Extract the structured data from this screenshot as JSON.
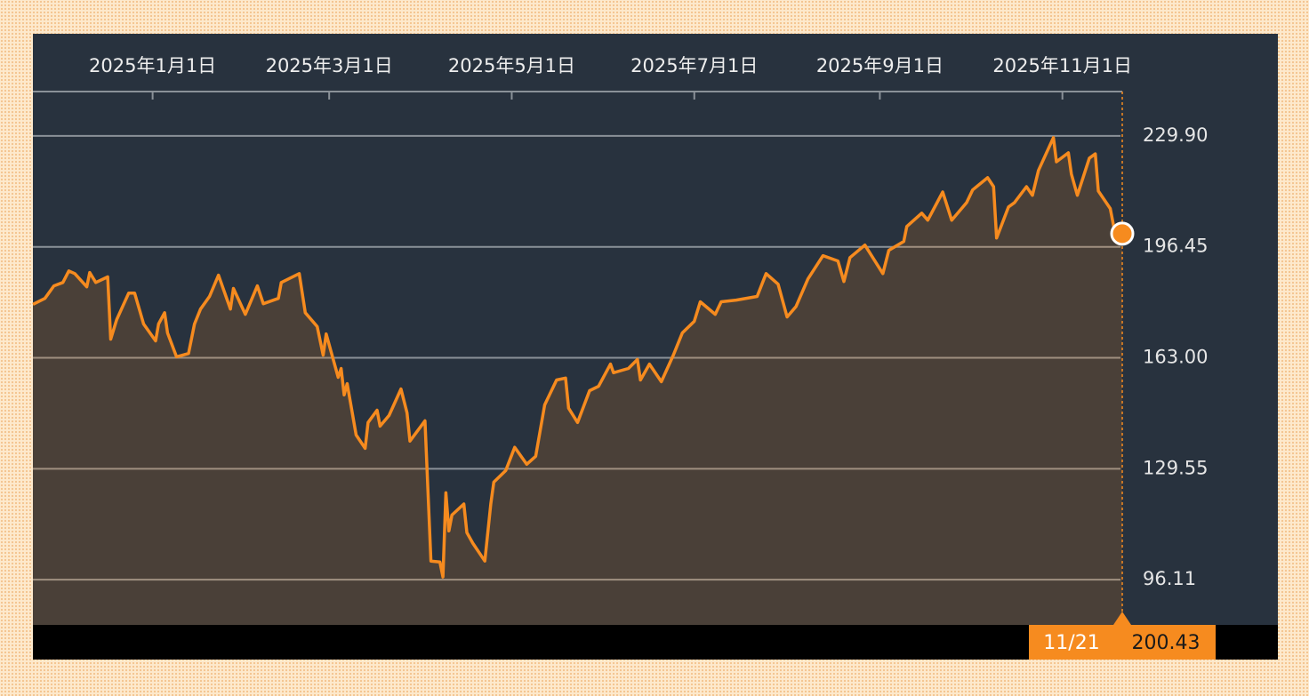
{
  "chart_data": {
    "type": "line",
    "x": [
      "11/22",
      "11/26",
      "11/29",
      "12/2",
      "12/4",
      "12/6",
      "12/10",
      "12/11",
      "12/13",
      "12/17",
      "12/18",
      "12/20",
      "12/24",
      "12/26",
      "12/29",
      "1/2",
      "1/3",
      "1/5",
      "1/6",
      "1/9",
      "1/13",
      "1/15",
      "1/17",
      "1/20",
      "1/23",
      "1/27",
      "1/28",
      "2/1",
      "2/5",
      "2/7",
      "2/12",
      "2/13",
      "2/19",
      "2/21",
      "2/25",
      "2/27",
      "2/28",
      "3/4",
      "3/5",
      "3/6",
      "3/7",
      "3/10",
      "3/13",
      "3/14",
      "3/17",
      "3/18",
      "3/21",
      "3/25",
      "3/27",
      "3/28",
      "4/2",
      "4/4",
      "4/7",
      "4/8",
      "4/9",
      "4/10",
      "4/11",
      "4/15",
      "4/16",
      "4/18",
      "4/22",
      "4/24",
      "4/25",
      "4/29",
      "5/2",
      "5/6",
      "5/9",
      "5/12",
      "5/16",
      "5/19",
      "5/20",
      "5/23",
      "5/27",
      "5/30",
      "6/3",
      "6/4",
      "6/9",
      "6/12",
      "6/13",
      "6/16",
      "6/20",
      "6/24",
      "6/27",
      "7/1",
      "7/3",
      "7/8",
      "7/10",
      "7/15",
      "7/22",
      "7/25",
      "7/29",
      "8/1",
      "8/4",
      "8/8",
      "8/13",
      "8/18",
      "8/20",
      "8/22",
      "8/27",
      "9/2",
      "9/4",
      "9/9",
      "9/10",
      "9/15",
      "9/17",
      "9/22",
      "9/25",
      "9/30",
      "10/2",
      "10/7",
      "10/9",
      "10/10",
      "10/14",
      "10/16",
      "10/20",
      "10/22",
      "10/24",
      "10/29",
      "10/30",
      "11/3",
      "11/4",
      "11/6",
      "11/10",
      "11/12",
      "11/13",
      "11/17",
      "11/19",
      "11/21"
    ],
    "values": [
      179.1,
      180.9,
      184.7,
      185.7,
      189.2,
      188.4,
      184.4,
      188.7,
      185.7,
      187.4,
      168.6,
      174.5,
      182.5,
      182.5,
      173.2,
      168.1,
      173.2,
      176.6,
      170.5,
      163.3,
      164.3,
      173.2,
      177.7,
      181.5,
      187.9,
      177.7,
      183.9,
      176.1,
      184.7,
      179.3,
      180.9,
      185.7,
      188.4,
      176.6,
      172.4,
      163.8,
      170.2,
      157.1,
      159.8,
      151.8,
      155.2,
      139.7,
      135.7,
      143.5,
      147.2,
      142.4,
      145.6,
      153.6,
      146.4,
      137.9,
      144.0,
      101.7,
      101.4,
      96.9,
      122.3,
      110.8,
      115.6,
      118.9,
      110.3,
      107.1,
      101.7,
      118.9,
      125.5,
      129.0,
      136.0,
      130.9,
      133.3,
      148.8,
      156.3,
      156.9,
      147.8,
      143.5,
      153.1,
      154.4,
      161.1,
      158.5,
      159.8,
      162.5,
      156.3,
      161.1,
      155.8,
      163.8,
      170.5,
      174.0,
      179.9,
      176.1,
      179.9,
      180.4,
      181.5,
      188.4,
      185.2,
      175.3,
      178.5,
      186.8,
      193.8,
      192.2,
      186.0,
      193.2,
      197.0,
      188.4,
      195.4,
      198.1,
      202.6,
      206.6,
      204.5,
      213.0,
      204.5,
      209.8,
      213.6,
      217.3,
      214.6,
      199.1,
      208.5,
      209.8,
      214.6,
      212.0,
      219.5,
      229.4,
      222.1,
      224.8,
      218.4,
      212.0,
      223.2,
      224.5,
      213.3,
      208.0,
      198.6,
      200.43
    ],
    "color": "#f68b1f",
    "xlim": [
      "11/22",
      "11/21"
    ],
    "xticks": [
      {
        "value": "1/1",
        "label": "2025年1月1日"
      },
      {
        "value": "3/1",
        "label": "2025年3月1日"
      },
      {
        "value": "5/1",
        "label": "2025年5月1日"
      },
      {
        "value": "7/1",
        "label": "2025年7月1日"
      },
      {
        "value": "9/1",
        "label": "2025年9月1日"
      },
      {
        "value": "11/1",
        "label": "2025年11月1日"
      }
    ],
    "ylim": [
      82.46,
      243.28
    ],
    "yticks": [
      96.11,
      129.55,
      {
        "value": 163,
        "label": "163.00"
      },
      196.45,
      {
        "value": 229.9,
        "label": "229.90"
      }
    ],
    "grid": true
  }
}
